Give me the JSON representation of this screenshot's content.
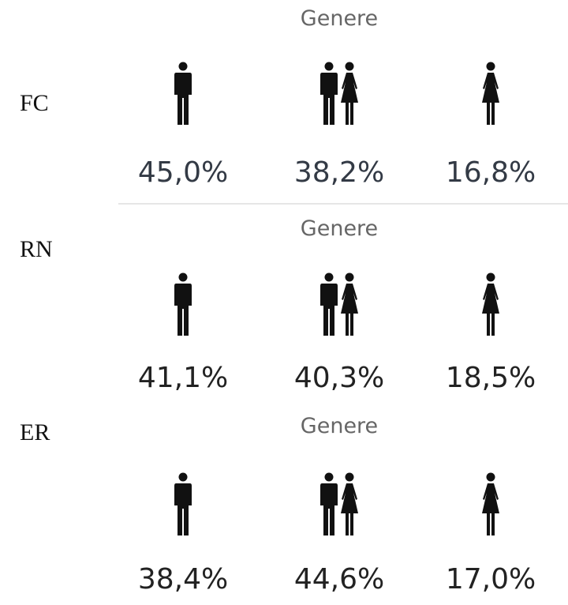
{
  "panels": [
    {
      "label": "FC",
      "title": "Genere",
      "items": [
        "45,0%",
        "38,2%",
        "16,8%"
      ]
    },
    {
      "label": "RN",
      "title": "Genere",
      "items": [
        "41,1%",
        "40,3%",
        "18,5%"
      ]
    },
    {
      "label": "ER",
      "title": "Genere",
      "items": [
        "38,4%",
        "44,6%",
        "17,0%"
      ]
    }
  ]
}
